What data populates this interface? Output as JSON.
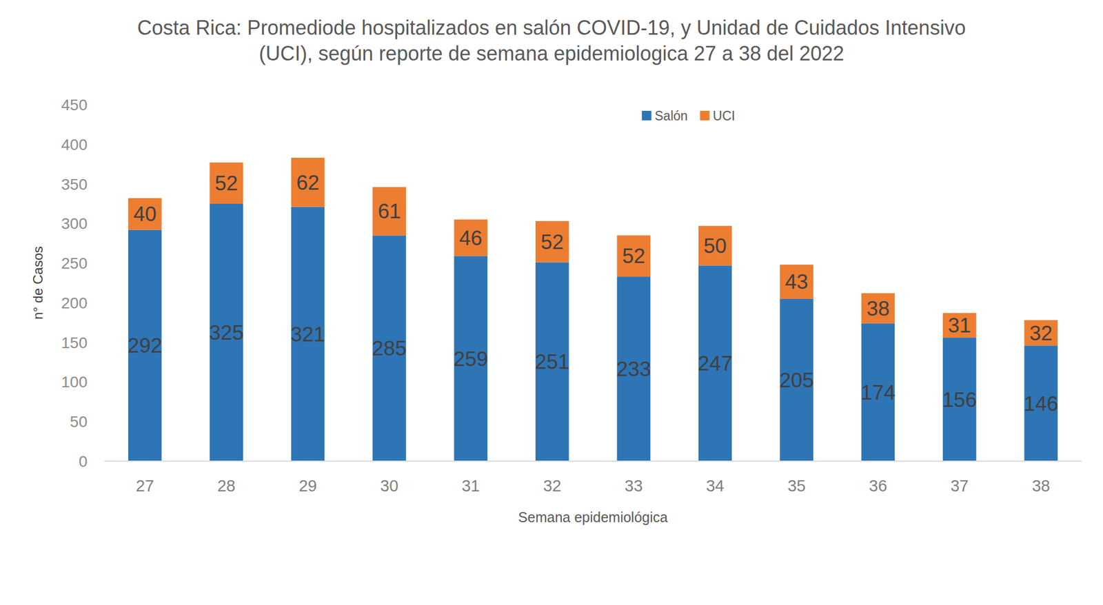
{
  "chart_data": {
    "type": "bar",
    "title": "Costa Rica: Promediode hospitalizados en salón COVID-19, y Unidad de Cuidados Intensivo (UCI), según reporte de semana epidemiologica 27 a 38 del 2022",
    "x_label": "Semana  epidemiológica",
    "y_label": "n° de Casos",
    "categories": [
      "27",
      "28",
      "29",
      "30",
      "31",
      "32",
      "33",
      "34",
      "35",
      "36",
      "37",
      "38"
    ],
    "series": [
      {
        "name": "Salón",
        "color": "#2e75b6",
        "values": [
          292,
          325,
          321,
          285,
          259,
          251,
          233,
          247,
          205,
          174,
          156,
          146
        ]
      },
      {
        "name": "UCI",
        "color": "#ed7d31",
        "values": [
          40,
          52,
          62,
          61,
          46,
          52,
          52,
          50,
          43,
          38,
          31,
          32
        ]
      }
    ],
    "ylim": [
      0,
      450
    ],
    "yticks": [
      0,
      50,
      100,
      150,
      200,
      250,
      300,
      350,
      400,
      450
    ],
    "stacked": true,
    "data_labels": true,
    "grid": false,
    "legend": "top"
  }
}
